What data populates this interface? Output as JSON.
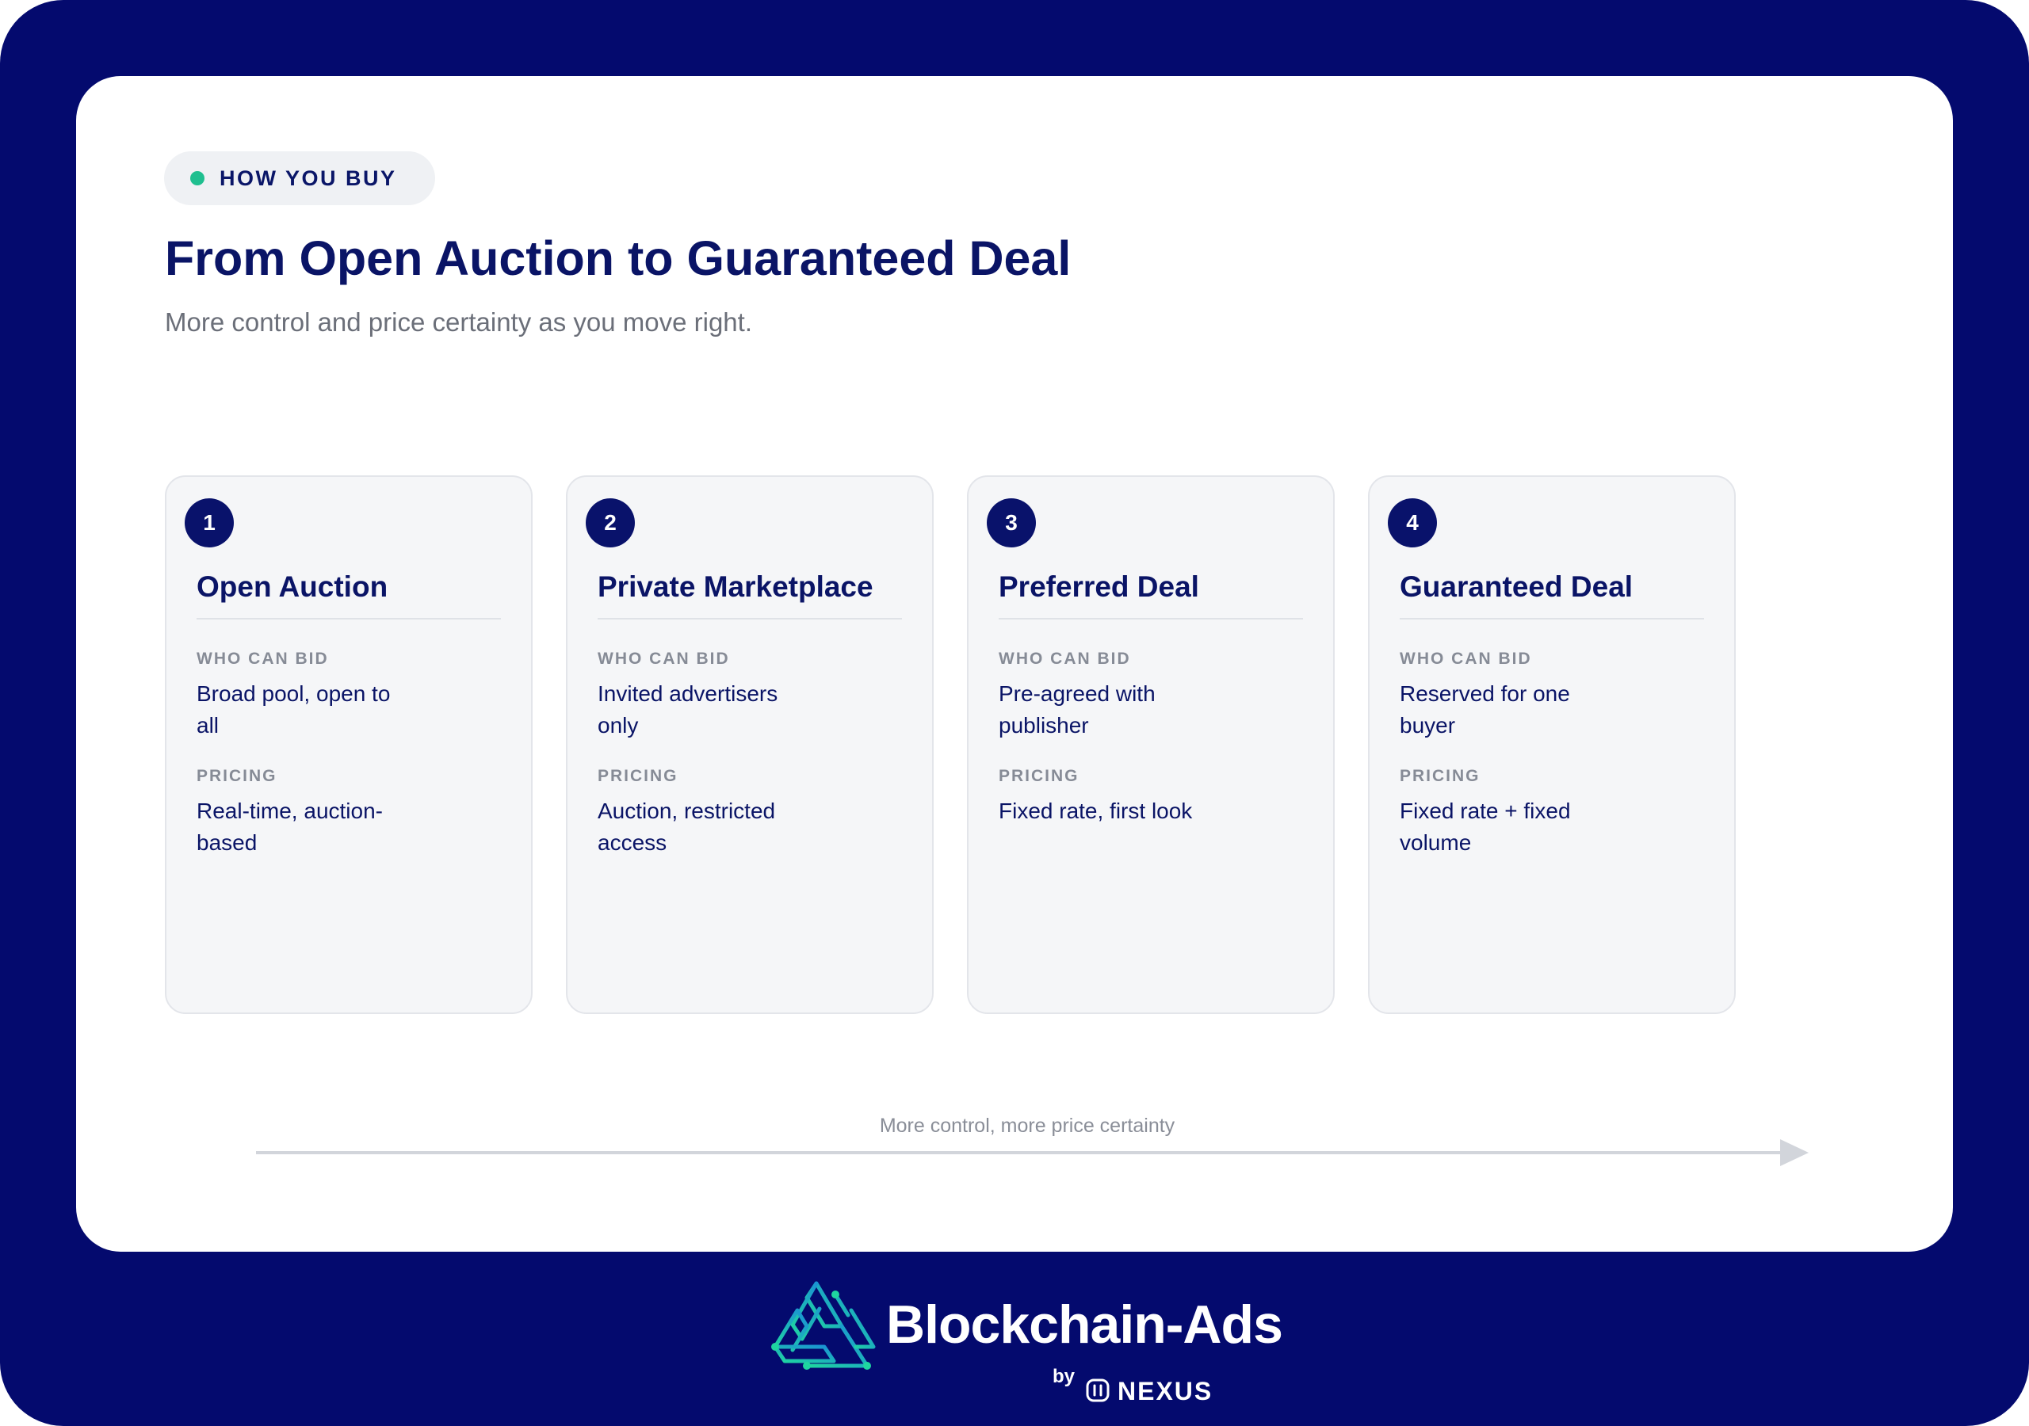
{
  "eyebrow": {
    "label": "HOW YOU BUY"
  },
  "header": {
    "title": "From Open Auction to Guaranteed Deal",
    "subtitle": "More control and price certainty as you move right."
  },
  "cards": [
    {
      "number": "1",
      "title": "Open Auction",
      "who_label": "WHO CAN BID",
      "who_value": "Broad pool, open to all",
      "pricing_label": "PRICING",
      "pricing_value": "Real-time, auction-based"
    },
    {
      "number": "2",
      "title": "Private Marketplace",
      "who_label": "WHO CAN BID",
      "who_value": "Invited advertisers only",
      "pricing_label": "PRICING",
      "pricing_value": "Auction, restricted access"
    },
    {
      "number": "3",
      "title": "Preferred Deal",
      "who_label": "WHO CAN BID",
      "who_value": "Pre-agreed with publisher",
      "pricing_label": "PRICING",
      "pricing_value": "Fixed rate, first look"
    },
    {
      "number": "4",
      "title": "Guaranteed Deal",
      "who_label": "WHO CAN BID",
      "who_value": "Reserved for one buyer",
      "pricing_label": "PRICING",
      "pricing_value": "Fixed rate + fixed volume"
    }
  ],
  "arrow": {
    "caption": "More control, more price certainty"
  },
  "footer": {
    "brand": "Blockchain-Ads",
    "by": "by",
    "partner": "NEXUS"
  },
  "colors": {
    "background": "#040a6e",
    "accent_dot": "#1fbf8f",
    "navy": "#0a1466",
    "logo_gradient": [
      "#1fd6a0",
      "#1a8fd6"
    ]
  }
}
